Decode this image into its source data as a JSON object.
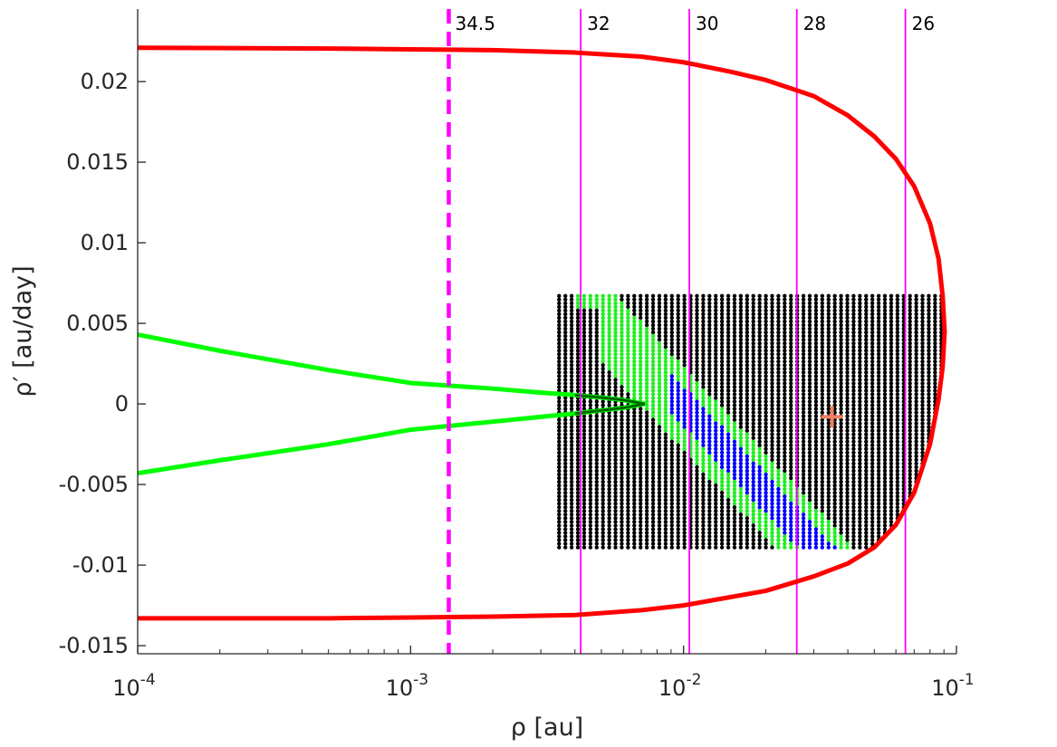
{
  "chart_data": {
    "type": "scatter",
    "title": "",
    "xlabel": "ρ [au]",
    "ylabel": "ρ′ [au/day]",
    "xscale": "log",
    "xlim": [
      0.0001,
      0.1
    ],
    "ylim": [
      -0.0155,
      0.0245
    ],
    "x_ticks": [
      {
        "value": 0.0001,
        "base": "10",
        "exp": "-4"
      },
      {
        "value": 0.001,
        "base": "10",
        "exp": "-3"
      },
      {
        "value": 0.01,
        "base": "10",
        "exp": "-2"
      },
      {
        "value": 0.1,
        "base": "10",
        "exp": "-1"
      }
    ],
    "y_ticks": [
      {
        "value": 0.02,
        "label": "0.02"
      },
      {
        "value": 0.015,
        "label": "0.015"
      },
      {
        "value": 0.01,
        "label": "0.01"
      },
      {
        "value": 0.005,
        "label": "0.005"
      },
      {
        "value": 0,
        "label": "0"
      },
      {
        "value": -0.005,
        "label": "-0.005"
      },
      {
        "value": -0.01,
        "label": "-0.01"
      },
      {
        "value": -0.015,
        "label": "-0.015"
      }
    ],
    "grid": false,
    "legend": "none",
    "magnitude_lines": [
      {
        "x": 0.00138,
        "label": "34.5",
        "style": "dashed",
        "color": "#ff00ff"
      },
      {
        "x": 0.0042,
        "label": "32",
        "style": "solid",
        "color": "#ff00ff"
      },
      {
        "x": 0.0105,
        "label": "30",
        "style": "solid",
        "color": "#ff00ff"
      },
      {
        "x": 0.026,
        "label": "28",
        "style": "solid",
        "color": "#ff00ff"
      },
      {
        "x": 0.065,
        "label": "26",
        "style": "solid",
        "color": "#ff00ff"
      }
    ],
    "red_boundary": {
      "color": "#ff0000",
      "points": [
        [
          0.0001,
          0.0221
        ],
        [
          0.0005,
          0.02205
        ],
        [
          0.001,
          0.022
        ],
        [
          0.002,
          0.02195
        ],
        [
          0.004,
          0.0218
        ],
        [
          0.007,
          0.02155
        ],
        [
          0.01,
          0.0212
        ],
        [
          0.015,
          0.0206
        ],
        [
          0.02,
          0.0201
        ],
        [
          0.03,
          0.0191
        ],
        [
          0.04,
          0.0179
        ],
        [
          0.05,
          0.0166
        ],
        [
          0.06,
          0.0152
        ],
        [
          0.07,
          0.0135
        ],
        [
          0.08,
          0.0112
        ],
        [
          0.086,
          0.009
        ],
        [
          0.089,
          0.0067
        ],
        [
          0.0905,
          0.0045
        ],
        [
          0.089,
          0.0023
        ],
        [
          0.086,
          0.0003
        ],
        [
          0.08,
          -0.0025
        ],
        [
          0.07,
          -0.0055
        ],
        [
          0.06,
          -0.0075
        ],
        [
          0.05,
          -0.0089
        ],
        [
          0.04,
          -0.0099
        ],
        [
          0.03,
          -0.0107
        ],
        [
          0.02,
          -0.0116
        ],
        [
          0.01,
          -0.0125
        ],
        [
          0.007,
          -0.0128
        ],
        [
          0.004,
          -0.0131
        ],
        [
          0.002,
          -0.0132
        ],
        [
          0.001,
          -0.01325
        ],
        [
          0.0005,
          -0.0133
        ],
        [
          0.0001,
          -0.0133
        ]
      ]
    },
    "green_boundary": {
      "color": "#00ff00",
      "points": [
        [
          0.0001,
          0.0043
        ],
        [
          0.0002,
          0.0033
        ],
        [
          0.0005,
          0.0021
        ],
        [
          0.001,
          0.0013
        ],
        [
          0.002,
          0.00095
        ],
        [
          0.003,
          0.0007
        ],
        [
          0.004,
          0.00055
        ],
        [
          0.005,
          0.0004
        ],
        [
          0.006,
          0.00025
        ],
        [
          0.0072,
          0.0
        ],
        [
          0.006,
          -0.00025
        ],
        [
          0.005,
          -0.0004
        ],
        [
          0.004,
          -0.0006
        ],
        [
          0.003,
          -0.0008
        ],
        [
          0.002,
          -0.0011
        ],
        [
          0.001,
          -0.0016
        ],
        [
          0.0005,
          -0.0025
        ],
        [
          0.0002,
          -0.0035
        ],
        [
          0.0001,
          -0.0043
        ]
      ]
    },
    "attributable_grid": {
      "x_min": 0.0035,
      "x_max": 0.088,
      "y_min": -0.0089,
      "y_max": 0.0067,
      "nx": 62,
      "ny": 70,
      "colors": {
        "rejected": "#000000",
        "admissible": "#22ee22",
        "best": "#0000ff"
      }
    },
    "nominal_solution": {
      "x": 0.035,
      "y": -0.0008,
      "color": "#f08060",
      "marker": "plus"
    }
  }
}
